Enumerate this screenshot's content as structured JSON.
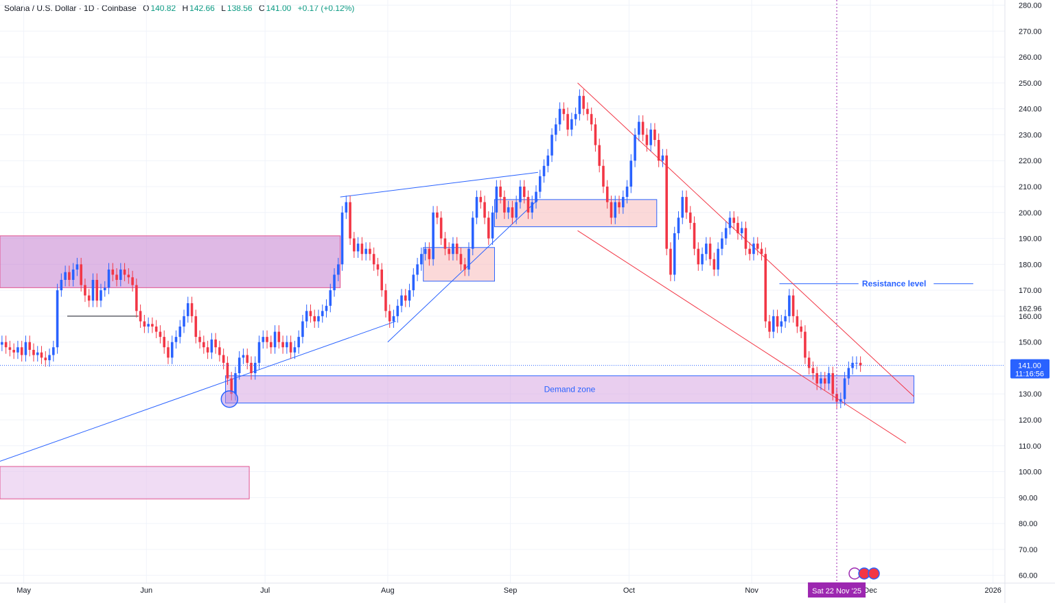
{
  "header": {
    "symbol": "Solana / U.S. Dollar · 1D · Coinbase",
    "open_label": "O",
    "open": "140.82",
    "high_label": "H",
    "high": "142.66",
    "low_label": "L",
    "low": "138.56",
    "close_label": "C",
    "close": "141.00",
    "change": "+0.17 (+0.12%)"
  },
  "colors": {
    "up": "#2962ff",
    "down": "#f23645",
    "grid": "#f0f3fa",
    "zone_purple": "#c47fd0",
    "zone_red": "#f7b9b9",
    "trend_blue": "#2962ff",
    "trend_red": "#f23645",
    "crosshair_label": "#9c27b0"
  },
  "chart_data": {
    "type": "candlestick",
    "y_ticks": [
      "280.00",
      "270.00",
      "260.00",
      "250.00",
      "240.00",
      "230.00",
      "220.00",
      "210.00",
      "200.00",
      "190.00",
      "180.00",
      "170.00",
      "160.00",
      "150.00",
      "130.00",
      "120.00",
      "110.00",
      "100.00",
      "90.00",
      "80.00",
      "70.00",
      "60.00"
    ],
    "ylim": [
      57,
      282
    ],
    "x_labels": [
      {
        "label": "May",
        "date": "2025-05-01"
      },
      {
        "label": "Jun",
        "date": "2025-06-01"
      },
      {
        "label": "Jul",
        "date": "2025-07-01"
      },
      {
        "label": "Aug",
        "date": "2025-08-01"
      },
      {
        "label": "Sep",
        "date": "2025-09-01"
      },
      {
        "label": "Oct",
        "date": "2025-10-01"
      },
      {
        "label": "Nov",
        "date": "2025-11-01"
      },
      {
        "label": "Dec",
        "date": "2025-12-01"
      },
      {
        "label": "2026",
        "date": "2026-01-01"
      }
    ],
    "xlim": [
      "2025-04-25",
      "2026-01-04"
    ],
    "price_marker": {
      "value": "141.00",
      "countdown": "11:16:56"
    },
    "level_marker": {
      "value": "162.96"
    },
    "crosshair": {
      "date": "2025-11-22",
      "label": "Sat 22 Nov '25"
    },
    "closes": [
      [
        4,
        25,
        150
      ],
      [
        4,
        26,
        148
      ],
      [
        4,
        27,
        147
      ],
      [
        4,
        28,
        146
      ],
      [
        4,
        29,
        148
      ],
      [
        4,
        30,
        145
      ],
      [
        5,
        1,
        150
      ],
      [
        5,
        2,
        147
      ],
      [
        5,
        3,
        145
      ],
      [
        5,
        4,
        146
      ],
      [
        5,
        5,
        144
      ],
      [
        5,
        6,
        143
      ],
      [
        5,
        7,
        145
      ],
      [
        5,
        8,
        148
      ],
      [
        5,
        9,
        170
      ],
      [
        5,
        10,
        174
      ],
      [
        5,
        11,
        177
      ],
      [
        5,
        12,
        174
      ],
      [
        5,
        13,
        178
      ],
      [
        5,
        14,
        180
      ],
      [
        5,
        15,
        172
      ],
      [
        5,
        16,
        168
      ],
      [
        5,
        17,
        166
      ],
      [
        5,
        18,
        174
      ],
      [
        5,
        19,
        166
      ],
      [
        5,
        20,
        170
      ],
      [
        5,
        21,
        171
      ],
      [
        5,
        22,
        178
      ],
      [
        5,
        23,
        176
      ],
      [
        5,
        24,
        174
      ],
      [
        5,
        25,
        178
      ],
      [
        5,
        26,
        176
      ],
      [
        5,
        27,
        175
      ],
      [
        5,
        28,
        172
      ],
      [
        5,
        29,
        162
      ],
      [
        5,
        30,
        158
      ],
      [
        5,
        31,
        156
      ],
      [
        6,
        1,
        157
      ],
      [
        6,
        2,
        156
      ],
      [
        6,
        3,
        154
      ],
      [
        6,
        4,
        152
      ],
      [
        6,
        5,
        148
      ],
      [
        6,
        6,
        144
      ],
      [
        6,
        7,
        150
      ],
      [
        6,
        8,
        152
      ],
      [
        6,
        9,
        156
      ],
      [
        6,
        10,
        160
      ],
      [
        6,
        11,
        165
      ],
      [
        6,
        12,
        160
      ],
      [
        6,
        13,
        152
      ],
      [
        6,
        14,
        150
      ],
      [
        6,
        15,
        148
      ],
      [
        6,
        16,
        146
      ],
      [
        6,
        17,
        151
      ],
      [
        6,
        18,
        148
      ],
      [
        6,
        19,
        145
      ],
      [
        6,
        20,
        142
      ],
      [
        6,
        21,
        136
      ],
      [
        6,
        22,
        130
      ],
      [
        6,
        23,
        138
      ],
      [
        6,
        24,
        144
      ],
      [
        6,
        25,
        145
      ],
      [
        6,
        26,
        142
      ],
      [
        6,
        27,
        138
      ],
      [
        6,
        28,
        142
      ],
      [
        6,
        29,
        150
      ],
      [
        6,
        30,
        152
      ],
      [
        7,
        1,
        150
      ],
      [
        7,
        2,
        148
      ],
      [
        7,
        3,
        154
      ],
      [
        7,
        4,
        150
      ],
      [
        7,
        5,
        148
      ],
      [
        7,
        6,
        150
      ],
      [
        7,
        7,
        146
      ],
      [
        7,
        8,
        148
      ],
      [
        7,
        9,
        152
      ],
      [
        7,
        10,
        158
      ],
      [
        7,
        11,
        162
      ],
      [
        7,
        12,
        160
      ],
      [
        7,
        13,
        158
      ],
      [
        7,
        14,
        160
      ],
      [
        7,
        15,
        162
      ],
      [
        7,
        16,
        164
      ],
      [
        7,
        17,
        170
      ],
      [
        7,
        18,
        176
      ],
      [
        7,
        19,
        180
      ],
      [
        7,
        20,
        200
      ],
      [
        7,
        21,
        204
      ],
      [
        7,
        22,
        190
      ],
      [
        7,
        23,
        185
      ],
      [
        7,
        24,
        188
      ],
      [
        7,
        25,
        184
      ],
      [
        7,
        26,
        186
      ],
      [
        7,
        27,
        184
      ],
      [
        7,
        28,
        180
      ],
      [
        7,
        29,
        178
      ],
      [
        7,
        30,
        170
      ],
      [
        7,
        31,
        162
      ],
      [
        8,
        1,
        158
      ],
      [
        8,
        2,
        160
      ],
      [
        8,
        3,
        164
      ],
      [
        8,
        4,
        168
      ],
      [
        8,
        5,
        166
      ],
      [
        8,
        6,
        170
      ],
      [
        8,
        7,
        176
      ],
      [
        8,
        8,
        180
      ],
      [
        8,
        9,
        184
      ],
      [
        8,
        10,
        186
      ],
      [
        8,
        11,
        182
      ],
      [
        8,
        12,
        200
      ],
      [
        8,
        13,
        198
      ],
      [
        8,
        14,
        190
      ],
      [
        8,
        15,
        186
      ],
      [
        8,
        16,
        184
      ],
      [
        8,
        17,
        188
      ],
      [
        8,
        18,
        184
      ],
      [
        8,
        19,
        180
      ],
      [
        8,
        20,
        178
      ],
      [
        8,
        21,
        186
      ],
      [
        8,
        22,
        198
      ],
      [
        8,
        23,
        206
      ],
      [
        8,
        24,
        204
      ],
      [
        8,
        25,
        198
      ],
      [
        8,
        26,
        190
      ],
      [
        8,
        27,
        200
      ],
      [
        8,
        28,
        210
      ],
      [
        8,
        29,
        206
      ],
      [
        8,
        30,
        200
      ],
      [
        8,
        31,
        202
      ],
      [
        9,
        1,
        198
      ],
      [
        9,
        2,
        204
      ],
      [
        9,
        3,
        210
      ],
      [
        9,
        4,
        206
      ],
      [
        9,
        5,
        200
      ],
      [
        9,
        6,
        204
      ],
      [
        9,
        7,
        208
      ],
      [
        9,
        8,
        214
      ],
      [
        9,
        9,
        218
      ],
      [
        9,
        10,
        222
      ],
      [
        9,
        11,
        230
      ],
      [
        9,
        12,
        234
      ],
      [
        9,
        13,
        240
      ],
      [
        9,
        14,
        238
      ],
      [
        9,
        15,
        232
      ],
      [
        9,
        16,
        236
      ],
      [
        9,
        17,
        238
      ],
      [
        9,
        18,
        245
      ],
      [
        9,
        19,
        240
      ],
      [
        9,
        20,
        238
      ],
      [
        9,
        21,
        234
      ],
      [
        9,
        22,
        226
      ],
      [
        9,
        23,
        218
      ],
      [
        9,
        24,
        210
      ],
      [
        9,
        25,
        204
      ],
      [
        9,
        26,
        198
      ],
      [
        9,
        27,
        204
      ],
      [
        9,
        28,
        202
      ],
      [
        9,
        29,
        206
      ],
      [
        9,
        30,
        210
      ],
      [
        10,
        1,
        220
      ],
      [
        10,
        2,
        230
      ],
      [
        10,
        3,
        235
      ],
      [
        10,
        4,
        230
      ],
      [
        10,
        5,
        226
      ],
      [
        10,
        6,
        232
      ],
      [
        10,
        7,
        228
      ],
      [
        10,
        8,
        220
      ],
      [
        10,
        9,
        222
      ],
      [
        10,
        10,
        186
      ],
      [
        10,
        11,
        176
      ],
      [
        10,
        12,
        192
      ],
      [
        10,
        13,
        198
      ],
      [
        10,
        14,
        206
      ],
      [
        10,
        15,
        200
      ],
      [
        10,
        16,
        196
      ],
      [
        10,
        17,
        186
      ],
      [
        10,
        18,
        180
      ],
      [
        10,
        19,
        184
      ],
      [
        10,
        20,
        188
      ],
      [
        10,
        21,
        182
      ],
      [
        10,
        22,
        178
      ],
      [
        10,
        23,
        186
      ],
      [
        10,
        24,
        190
      ],
      [
        10,
        25,
        194
      ],
      [
        10,
        26,
        198
      ],
      [
        10,
        27,
        196
      ],
      [
        10,
        28,
        192
      ],
      [
        10,
        29,
        194
      ],
      [
        10,
        30,
        186
      ],
      [
        10,
        31,
        184
      ],
      [
        11,
        1,
        188
      ],
      [
        11,
        2,
        186
      ],
      [
        11,
        3,
        184
      ],
      [
        11,
        4,
        158
      ],
      [
        11,
        5,
        154
      ],
      [
        11,
        6,
        160
      ],
      [
        11,
        7,
        156
      ],
      [
        11,
        8,
        158
      ],
      [
        11,
        9,
        160
      ],
      [
        11,
        10,
        168
      ],
      [
        11,
        11,
        160
      ],
      [
        11,
        12,
        156
      ],
      [
        11,
        13,
        154
      ],
      [
        11,
        14,
        144
      ],
      [
        11,
        15,
        140
      ],
      [
        11,
        16,
        138
      ],
      [
        11,
        17,
        134
      ],
      [
        11,
        18,
        136
      ],
      [
        11,
        19,
        134
      ],
      [
        11,
        20,
        138
      ],
      [
        11,
        21,
        130
      ],
      [
        11,
        22,
        127
      ],
      [
        11,
        23,
        128
      ],
      [
        11,
        24,
        136
      ],
      [
        11,
        25,
        140
      ],
      [
        11,
        26,
        142
      ],
      [
        11,
        27,
        142
      ],
      [
        11,
        28,
        141
      ]
    ],
    "annotations": {
      "boxes": [
        {
          "name": "supply-zone-may",
          "start": "2025-04-25",
          "end": "2025-07-20",
          "top": 191,
          "bottom": 171,
          "fill": "#c47fd0",
          "opacity": 0.55,
          "stroke": "#e0528f"
        },
        {
          "name": "demand-zone",
          "start": "2025-06-21",
          "end": "2025-12-12",
          "top": 137,
          "bottom": 126.5,
          "fill": "#d49ee0",
          "opacity": 0.5,
          "stroke": "#2962ff",
          "label": "Demand zone"
        },
        {
          "name": "lower-zone",
          "start": "2025-04-25",
          "end": "2025-06-27",
          "top": 102,
          "bottom": 89.5,
          "fill": "#e6c4ec",
          "opacity": 0.6,
          "stroke": "#e0528f"
        },
        {
          "name": "aug-box",
          "start": "2025-08-10",
          "end": "2025-08-28",
          "top": 186.5,
          "bottom": 173.5,
          "fill": "#f7b9b9",
          "opacity": 0.55,
          "stroke": "#2962ff"
        },
        {
          "name": "sep-box",
          "start": "2025-08-28",
          "end": "2025-10-08",
          "top": 205,
          "bottom": 194.5,
          "fill": "#f7b9b9",
          "opacity": 0.55,
          "stroke": "#2962ff"
        }
      ],
      "lines": [
        {
          "name": "long-trendline",
          "x1": "2025-04-25",
          "y1": 104,
          "x2": "2025-08-03",
          "y2": 158,
          "color": "#2962ff"
        },
        {
          "name": "upper-channel-line",
          "x1": "2025-07-20",
          "y1": 206,
          "x2": "2025-09-08",
          "y2": 215.5,
          "color": "#2962ff"
        },
        {
          "name": "rising-support-line",
          "x1": "2025-08-01",
          "y1": 150,
          "x2": "2025-09-08",
          "y2": 205,
          "color": "#2962ff"
        },
        {
          "name": "may-level-line",
          "x1": "2025-05-12",
          "y1": 160,
          "x2": "2025-05-30",
          "y2": 160,
          "color": "#131722"
        },
        {
          "name": "resistance-line-a",
          "x1": "2025-11-08",
          "y1": 172.5,
          "x2": "2025-11-28",
          "y2": 172.5,
          "color": "#2962ff"
        },
        {
          "name": "resistance-line-b",
          "x1": "2025-12-17",
          "y1": 172.5,
          "x2": "2025-12-27",
          "y2": 172.5,
          "color": "#2962ff"
        },
        {
          "name": "upper-wedge-line",
          "x1": "2025-09-18",
          "y1": 250,
          "x2": "2025-12-12",
          "y2": 129,
          "color": "#f23645"
        },
        {
          "name": "lower-wedge-line",
          "x1": "2025-09-18",
          "y1": 193,
          "x2": "2025-12-10",
          "y2": 111,
          "color": "#f23645"
        }
      ],
      "text_labels": [
        {
          "name": "resistance-label",
          "text": "Resistance level",
          "date": "2025-12-07",
          "value": 172.5,
          "color": "#2962ff"
        }
      ],
      "low_circle": {
        "date": "2025-06-22",
        "value": 128
      }
    }
  }
}
